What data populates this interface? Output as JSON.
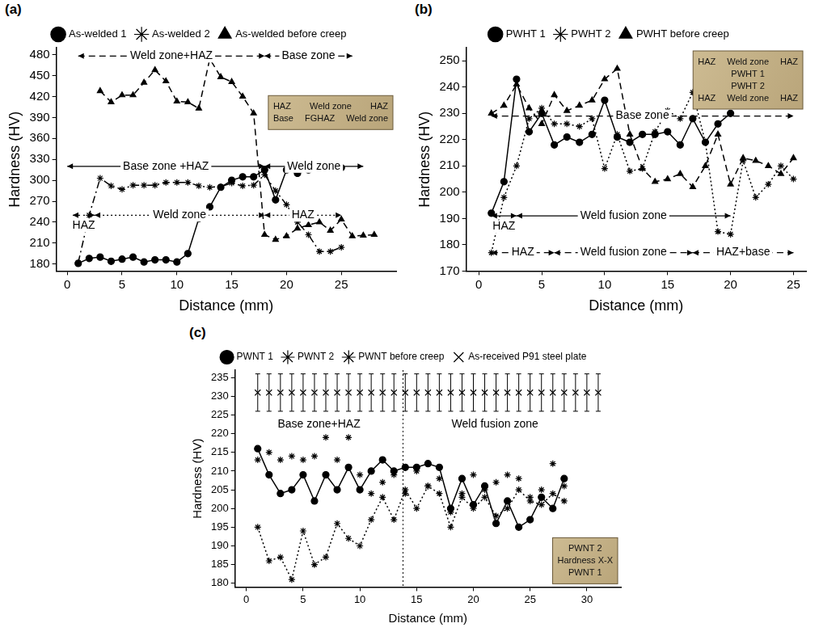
{
  "chart_data": [
    {
      "type": "line",
      "label": "(a)",
      "x_label": "Distance (mm)",
      "y_label": "Hardness (HV)",
      "xlim": [
        -1,
        30
      ],
      "xticks": [
        0,
        5,
        10,
        15,
        20,
        25
      ],
      "ylim": [
        170,
        490
      ],
      "yticks": [
        180,
        210,
        240,
        270,
        300,
        330,
        360,
        390,
        420,
        450,
        480
      ],
      "grid": false,
      "legend": "top",
      "series": [
        {
          "name": "As-welded 1",
          "color": "#000000",
          "marker": "circle",
          "line_style": "solid",
          "x": [
            1,
            2,
            3,
            4,
            5,
            6,
            7,
            8,
            9,
            10,
            11,
            12,
            13,
            14,
            15,
            16,
            17,
            18,
            19,
            20,
            21,
            22,
            23,
            24,
            25
          ],
          "values": [
            181,
            188,
            190,
            184,
            187,
            190,
            183,
            186,
            186,
            183,
            195,
            245,
            262,
            290,
            300,
            305,
            305,
            315,
            272,
            315,
            310,
            315,
            318,
            318,
            318
          ]
        },
        {
          "name": "As-welded 2",
          "color": "#000000",
          "marker": "asterisk",
          "line_style": "dashdot",
          "x": [
            1,
            2,
            3,
            4,
            5,
            6,
            7,
            8,
            9,
            10,
            11,
            12,
            13,
            14,
            15,
            16,
            17,
            18,
            19,
            20,
            21,
            22,
            23,
            24,
            25
          ],
          "values": [
            182,
            250,
            303,
            292,
            287,
            293,
            293,
            293,
            297,
            297,
            297,
            292,
            290,
            291,
            296,
            292,
            293,
            308,
            285,
            265,
            240,
            222,
            198,
            198,
            204
          ]
        },
        {
          "name": "As-welded before creep",
          "color": "#000000",
          "marker": "triangle",
          "line_style": "dashed",
          "x": [
            3,
            4,
            5,
            6,
            7,
            8,
            9,
            10,
            11,
            12,
            13,
            14,
            15,
            16,
            17,
            18,
            19,
            20,
            21,
            22,
            23,
            24,
            25,
            26,
            27,
            28
          ],
          "values": [
            428,
            412,
            422,
            422,
            440,
            458,
            442,
            413,
            412,
            403,
            474,
            448,
            441,
            420,
            396,
            222,
            215,
            220,
            231,
            236,
            240,
            228,
            244,
            220,
            221,
            222
          ]
        }
      ],
      "annotations": [
        {
          "text": "Weld zone+HAZ",
          "x": [
            1,
            18
          ],
          "y": 478,
          "line_style": "dashed"
        },
        {
          "text": "Base zone",
          "x": [
            18,
            26
          ],
          "y": 478,
          "line_style": "dashed"
        },
        {
          "text": "Base zone +HAZ",
          "x": [
            0,
            18
          ],
          "y": 320,
          "line_style": "solid"
        },
        {
          "text": "Weld zone",
          "x": [
            18,
            27
          ],
          "y": 320,
          "line_style": "solid"
        },
        {
          "text": "HAZ",
          "x": [
            0.5,
            2.5
          ],
          "y": 250,
          "line_style": "dashdot"
        },
        {
          "text": "Weld zone",
          "x": [
            2.5,
            18
          ],
          "y": 250,
          "line_style": "dotted"
        },
        {
          "text": "HAZ",
          "x": [
            18,
            25
          ],
          "y": 250,
          "line_style": "dotted"
        }
      ],
      "inset_labels": [
        [
          "HAZ",
          "Weld zone",
          "HAZ"
        ],
        [
          "Base",
          "FGHAZ",
          "Weld zone"
        ]
      ]
    },
    {
      "type": "line",
      "label": "(b)",
      "x_label": "Distance (mm)",
      "y_label": "Hardness (HV)",
      "xlim": [
        -1,
        26
      ],
      "xticks": [
        0,
        5,
        10,
        15,
        20,
        25
      ],
      "ylim": [
        170,
        255
      ],
      "yticks": [
        170,
        180,
        190,
        200,
        210,
        220,
        230,
        240,
        250
      ],
      "grid": false,
      "legend": "top",
      "series": [
        {
          "name": "PWHT 1",
          "color": "#000000",
          "marker": "circle",
          "line_style": "solid",
          "x": [
            1,
            2,
            3,
            4,
            5,
            6,
            7,
            8,
            9,
            10,
            11,
            12,
            13,
            14,
            15,
            16,
            17,
            18,
            19,
            20
          ],
          "values": [
            192,
            204,
            243,
            223,
            230,
            218,
            221,
            219,
            222,
            235,
            221,
            219,
            222,
            222,
            223,
            218,
            228,
            219,
            226,
            230
          ]
        },
        {
          "name": "PWHT 2",
          "color": "#000000",
          "marker": "star",
          "line_style": "dotted",
          "x": [
            1,
            2,
            3,
            4,
            5,
            6,
            7,
            8,
            9,
            10,
            11,
            12,
            13,
            14,
            15,
            16,
            17,
            18,
            19,
            20,
            21,
            22,
            23,
            24,
            25
          ],
          "values": [
            177,
            198,
            210,
            228,
            232,
            226,
            226,
            225,
            228,
            209,
            222,
            208,
            209,
            223,
            231,
            228,
            238,
            219,
            185,
            184,
            212,
            198,
            203,
            210,
            205
          ]
        },
        {
          "name": "PWHT before creep",
          "color": "#000000",
          "marker": "triangle",
          "line_style": "dashed",
          "x": [
            1,
            2,
            3,
            4,
            5,
            6,
            7,
            8,
            9,
            10,
            11,
            12,
            13,
            14,
            15,
            16,
            17,
            18,
            19,
            20,
            21,
            22,
            23,
            24,
            25
          ],
          "values": [
            230,
            233,
            241,
            232,
            226,
            237,
            231,
            233,
            235,
            243,
            247,
            222,
            209,
            204,
            205,
            207,
            202,
            210,
            222,
            203,
            213,
            212,
            210,
            207,
            213
          ]
        }
      ],
      "annotations": [
        {
          "text": "Base zone",
          "x": [
            1,
            25
          ],
          "y": 229,
          "line_style": "dashed"
        },
        {
          "text": "HAZ",
          "x": [
            1,
            3
          ],
          "y": 191,
          "line_style": "solid"
        },
        {
          "text": "Weld fusion zone",
          "x": [
            3,
            20
          ],
          "y": 191,
          "line_style": "solid"
        },
        {
          "text": "HAZ",
          "x": [
            1,
            6
          ],
          "y": 177,
          "line_style": "dashed"
        },
        {
          "text": "Weld fusion zone",
          "x": [
            6,
            17
          ],
          "y": 177,
          "line_style": "dashed"
        },
        {
          "text": "HAZ+base",
          "x": [
            17,
            25
          ],
          "y": 177,
          "line_style": "dashed"
        }
      ],
      "inset_labels": [
        [
          "HAZ",
          "Weld zone",
          "HAZ"
        ],
        [
          "PWHT 1"
        ],
        [
          "PWHT 2"
        ],
        [
          "HAZ",
          "Weld zone",
          "HAZ"
        ]
      ]
    },
    {
      "type": "line",
      "label": "(c)",
      "x_label": "Distance (mm)",
      "y_label": "Hardness (HV)",
      "xlim": [
        -1,
        33
      ],
      "xticks": [
        0,
        5,
        10,
        15,
        20,
        25,
        30
      ],
      "ylim": [
        179,
        237
      ],
      "yticks": [
        180,
        185,
        190,
        195,
        200,
        205,
        210,
        215,
        220,
        225,
        230,
        235
      ],
      "grid": false,
      "legend": "top",
      "series": [
        {
          "name": "PWNT 1",
          "color": "#000000",
          "marker": "circle",
          "line_style": "solid",
          "x": [
            1,
            2,
            3,
            4,
            5,
            6,
            7,
            8,
            9,
            10,
            11,
            12,
            13,
            14,
            15,
            16,
            17,
            18,
            19,
            20,
            21,
            22,
            23,
            24,
            25,
            26,
            27,
            28
          ],
          "values": [
            216,
            209,
            204,
            205,
            209,
            202,
            209,
            205,
            211,
            205,
            210,
            213,
            210,
            211,
            211,
            212,
            211,
            200,
            208,
            201,
            206,
            196,
            202,
            195,
            197,
            203,
            200,
            208
          ]
        },
        {
          "name": "PWNT 2",
          "color": "#000000",
          "marker": "asterisk",
          "line_style": "dotted",
          "x": [
            1,
            2,
            3,
            4,
            5,
            6,
            7,
            8,
            9,
            10,
            11,
            12,
            13,
            14,
            15,
            16,
            17,
            18,
            19,
            20,
            21,
            22,
            23,
            24,
            25,
            26,
            27,
            28
          ],
          "values": [
            195,
            186,
            187,
            181,
            194,
            185,
            187,
            196,
            192,
            190,
            197,
            203,
            197,
            205,
            200,
            206,
            204,
            195,
            203,
            200,
            203,
            198,
            200,
            205,
            202,
            201,
            204,
            202
          ]
        },
        {
          "name": "PWNT before creep",
          "color": "#000000",
          "marker": "star",
          "line_style": "none",
          "x": [
            1,
            2,
            3,
            4,
            5,
            6,
            7,
            8,
            9,
            10,
            11,
            12,
            13,
            14,
            15,
            16,
            17,
            18,
            19,
            20,
            21,
            22,
            23,
            24,
            25,
            26,
            27,
            28
          ],
          "values": [
            213,
            215,
            213,
            214,
            213,
            214,
            219,
            213,
            219,
            209,
            204,
            207,
            209,
            204,
            210,
            206,
            208,
            199,
            204,
            209,
            205,
            207,
            209,
            208,
            203,
            205,
            212,
            206
          ]
        },
        {
          "name": "As-received P91 steel plate",
          "color": "#000000",
          "marker": "x",
          "line_style": "none",
          "x": [
            1,
            2,
            3,
            4,
            5,
            6,
            7,
            8,
            9,
            10,
            11,
            12,
            13,
            14,
            15,
            16,
            17,
            18,
            19,
            20,
            21,
            22,
            23,
            24,
            25,
            26,
            27,
            28,
            29,
            30,
            31
          ],
          "values": [
            231,
            231,
            231,
            231,
            231,
            231,
            231,
            231,
            231,
            231,
            231,
            231,
            231,
            231,
            231,
            231,
            231,
            231,
            231,
            231,
            231,
            231,
            231,
            231,
            231,
            231,
            231,
            231,
            231,
            231,
            231
          ],
          "errors": [
            5,
            5,
            5,
            5,
            5,
            5,
            5,
            5,
            5,
            5,
            5,
            5,
            5,
            5,
            5,
            5,
            5,
            5,
            5,
            5,
            5,
            5,
            5,
            5,
            5,
            5,
            5,
            5,
            5,
            5,
            5
          ]
        }
      ],
      "annotations": [
        {
          "type": "vline",
          "x": 13.8,
          "line_style": "dotted"
        },
        {
          "text": "Base zone+HAZ",
          "x": [
            -1,
            13.8
          ],
          "y": 222.5,
          "line_style": "none"
        },
        {
          "text": "Weld fusion zone",
          "x": [
            13.8,
            30
          ],
          "y": 222.5,
          "line_style": "none"
        }
      ],
      "inset_labels": [
        [
          "PWNT 2"
        ],
        [
          "Hardness X-X"
        ],
        [
          "PWNT 1"
        ]
      ]
    }
  ]
}
